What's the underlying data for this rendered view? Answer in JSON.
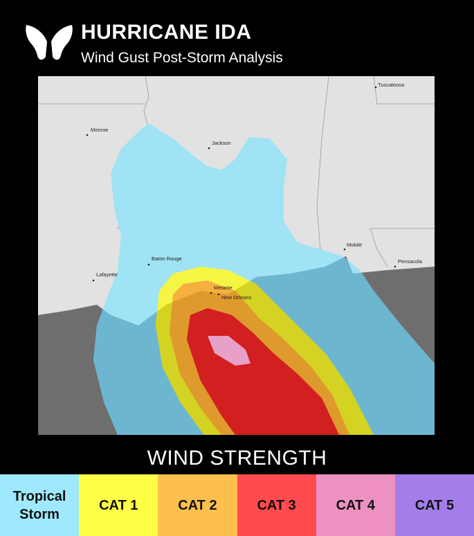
{
  "header": {
    "title": "HURRICANE IDA",
    "subtitle": "Wind Gust Post-Storm Analysis",
    "logo_icon": "butterfly-icon"
  },
  "map": {
    "cities": [
      "Tuscaloosa",
      "Monroe",
      "Jackson",
      "Baton Rouge",
      "Lafayette",
      "Metairie",
      "New Orleans",
      "Mobile",
      "Pensacola"
    ],
    "colors": {
      "land": "#e2e2e2",
      "water": "#6e6e6e"
    }
  },
  "legend": {
    "title": "WIND STRENGTH",
    "items": [
      {
        "label": "Tropical Storm",
        "color": "#9fe8fe"
      },
      {
        "label": "CAT 1",
        "color": "#ffff45"
      },
      {
        "label": "CAT 2",
        "color": "#fec04d"
      },
      {
        "label": "CAT 3",
        "color": "#ff4b4d"
      },
      {
        "label": "CAT 4",
        "color": "#ed91c3"
      },
      {
        "label": "CAT 5",
        "color": "#a47deb"
      }
    ]
  }
}
